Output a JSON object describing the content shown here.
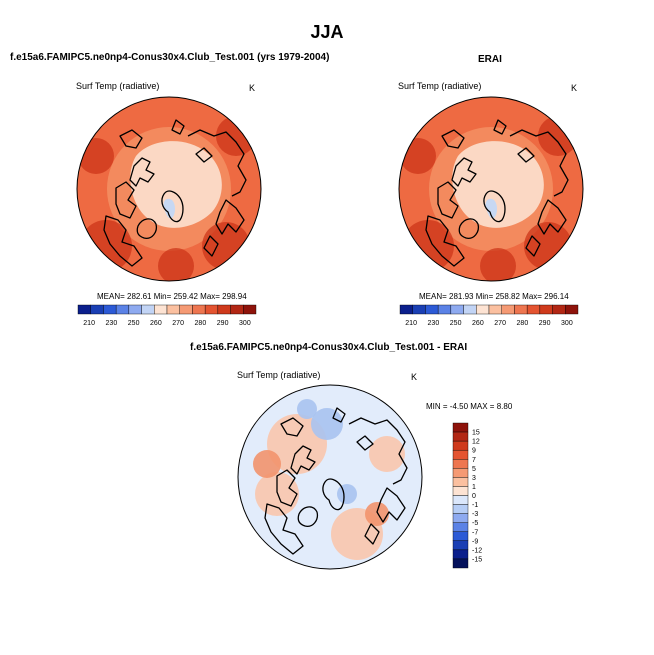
{
  "page": {
    "title": "JJA"
  },
  "panels": {
    "model": {
      "heading": "f.e15a6.FAMIPC5.ne0np4-Conus30x4.Club_Test.001 (yrs 1979-2004)",
      "variable": "Surf Temp (radiative)",
      "units": "K",
      "stats": "MEAN= 282.61  Min= 259.42  Max= 298.94"
    },
    "obs": {
      "heading": "ERAI",
      "variable": "Surf Temp (radiative)",
      "units": "K",
      "stats": "MEAN= 281.93  Min= 258.82  Max= 296.14"
    },
    "diff": {
      "heading": "f.e15a6.FAMIPC5.ne0np4-Conus30x4.Club_Test.001 - ERAI",
      "variable": "Surf Temp (radiative)",
      "units": "K",
      "stats": "MIN = -4.50 MAX =  8.80"
    }
  },
  "colorbars": {
    "absolute": {
      "labels": [
        "210",
        "230",
        "250",
        "260",
        "270",
        "280",
        "290",
        "300"
      ],
      "colors": [
        "#0b1f8c",
        "#1a3fb4",
        "#2c5ad6",
        "#5b82e6",
        "#8eaaf0",
        "#c2d4f5",
        "#fde3d3",
        "#fbc0a0",
        "#f59a74",
        "#ee7650",
        "#e45431",
        "#cf3a1c",
        "#b22714",
        "#8e130b"
      ]
    },
    "difference": {
      "labels": [
        "15",
        "12",
        "9",
        "7",
        "5",
        "3",
        "1",
        "0",
        "-1",
        "-3",
        "-5",
        "-7",
        "-9",
        "-12",
        "-15"
      ],
      "colors": [
        "#8e130b",
        "#b22714",
        "#cf3a1c",
        "#e45431",
        "#ee7650",
        "#f59a74",
        "#fbc0a0",
        "#fde3d3",
        "#dbe7fb",
        "#b6cdf5",
        "#8eaaf0",
        "#5b82e6",
        "#2c5ad6",
        "#1a3fb4",
        "#0b1f8c",
        "#05125c"
      ]
    }
  },
  "map_colors": {
    "ocean_warm": "#ee6a42",
    "mid_warm": "#f38a5e",
    "land_warm": "#e9522d",
    "hot_spots": "#cc3519",
    "arctic_ice": "#fbd8c4",
    "greenland_cold": "#c7d8f3",
    "diff_base": "#e2ecfb",
    "diff_pos": "#f9c7ad",
    "diff_pos_strong": "#f2946d",
    "diff_neg": "#a9c3f0",
    "coast": "#000000"
  }
}
